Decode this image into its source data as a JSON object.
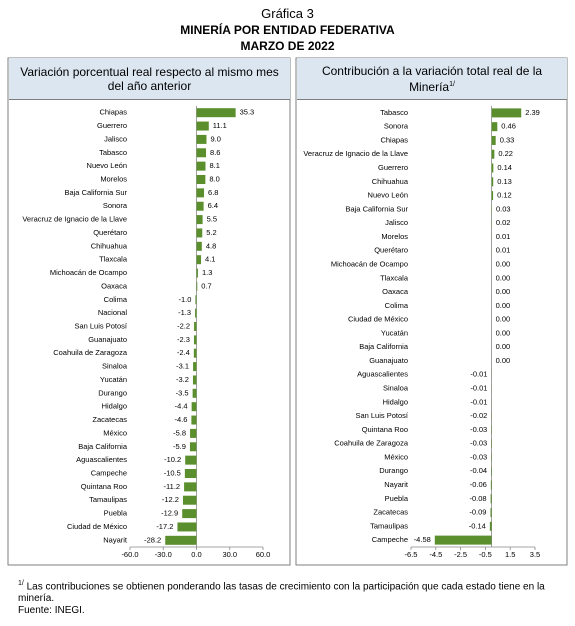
{
  "header": {
    "title": "Gráfica 3",
    "subtitle": "MINERÍA POR ENTIDAD FEDERATIVA",
    "period": "MARZO DE 2022"
  },
  "chart_data": [
    {
      "type": "bar",
      "title": "Variación porcentual real respecto al mismo mes del año anterior",
      "categories": [
        "Chiapas",
        "Guerrero",
        "Jalisco",
        "Tabasco",
        "Nuevo León",
        "Morelos",
        "Baja California Sur",
        "Sonora",
        "Veracruz de Ignacio de la Llave",
        "Querétaro",
        "Chihuahua",
        "Tlaxcala",
        "Michoacán de Ocampo",
        "Oaxaca",
        "Colima",
        "Nacional",
        "San Luis Potosí",
        "Guanajuato",
        "Coahuila de Zaragoza",
        "Sinaloa",
        "Yucatán",
        "Durango",
        "Hidalgo",
        "Zacatecas",
        "México",
        "Baja California",
        "Aguascalientes",
        "Campeche",
        "Quintana Roo",
        "Tamaulipas",
        "Puebla",
        "Ciudad de México",
        "Nayarit"
      ],
      "values": [
        35.3,
        11.1,
        9.0,
        8.6,
        8.1,
        8.0,
        6.8,
        6.4,
        5.5,
        5.2,
        4.8,
        4.1,
        1.3,
        0.7,
        -1.0,
        -1.3,
        -2.2,
        -2.3,
        -2.4,
        -3.1,
        -3.2,
        -3.5,
        -4.4,
        -4.6,
        -5.8,
        -5.9,
        -10.2,
        -10.5,
        -11.2,
        -12.2,
        -12.9,
        -17.2,
        -28.2
      ],
      "value_labels": [
        "35.3",
        "11.1",
        "9.0",
        "8.6",
        "8.1",
        "8.0",
        "6.8",
        "6.4",
        "5.5",
        "5.2",
        "4.8",
        "4.1",
        "1.3",
        "0.7",
        "-1.0",
        "-1.3",
        "-2.2",
        "-2.3",
        "-2.4",
        "-3.1",
        "-3.2",
        "-3.5",
        "-4.4",
        "-4.6",
        "-5.8",
        "-5.9",
        "-10.2",
        "-10.5",
        "-11.2",
        "-12.2",
        "-12.9",
        "-17.2",
        "-28.2"
      ],
      "color": "#5b8f2e",
      "xlim": [
        -60,
        60
      ],
      "xticks": [
        {
          "value": -60,
          "label": "-60.0"
        },
        {
          "value": -30,
          "label": "-30.0"
        },
        {
          "value": 0,
          "label": "0.0"
        },
        {
          "value": 30,
          "label": "30.0"
        },
        {
          "value": 60,
          "label": "60.0"
        }
      ]
    },
    {
      "type": "bar",
      "title": "Contribución a la variación total real de la Minería",
      "title_note": "1/",
      "categories": [
        "Tabasco",
        "Sonora",
        "Chiapas",
        "Veracruz de Ignacio de la Llave",
        "Guerrero",
        "Chihuahua",
        "Nuevo León",
        "Baja California Sur",
        "Jalisco",
        "Morelos",
        "Querétaro",
        "Michoacán de Ocampo",
        "Tlaxcala",
        "Oaxaca",
        "Colima",
        "Ciudad de México",
        "Yucatán",
        "Baja California",
        "Guanajuato",
        "Aguascalientes",
        "Sinaloa",
        "Hidalgo",
        "San Luis Potosí",
        "Quintana Roo",
        "Coahuila de Zaragoza",
        "México",
        "Durango",
        "Nayarit",
        "Puebla",
        "Zacatecas",
        "Tamaulipas",
        "Campeche"
      ],
      "values": [
        2.39,
        0.46,
        0.33,
        0.22,
        0.14,
        0.13,
        0.12,
        0.03,
        0.02,
        0.01,
        0.01,
        0.0,
        0.0,
        0.0,
        0.0,
        0.0,
        0.0,
        0.0,
        0.0,
        -0.01,
        -0.01,
        -0.01,
        -0.02,
        -0.03,
        -0.03,
        -0.03,
        -0.04,
        -0.06,
        -0.08,
        -0.09,
        -0.14,
        -4.58
      ],
      "value_labels": [
        "2.39",
        "0.46",
        "0.33",
        "0.22",
        "0.14",
        "0.13",
        "0.12",
        "0.03",
        "0.02",
        "0.01",
        "0.01",
        "0.00",
        "0.00",
        "0.00",
        "0.00",
        "0.00",
        "0.00",
        "0.00",
        "0.00",
        "-0.01",
        "-0.01",
        "-0.01",
        "-0.02",
        "-0.03",
        "-0.03",
        "-0.03",
        "-0.04",
        "-0.06",
        "-0.08",
        "-0.09",
        "-0.14",
        "-4.58"
      ],
      "color": "#5b8f2e",
      "xlim": [
        -6.5,
        3.5
      ],
      "xticks": [
        -6.5,
        -4.5,
        -2.5,
        -0.5,
        1.5,
        3.5
      ]
    }
  ],
  "footnote": {
    "mark": "1/",
    "text": "Las contribuciones se obtienen ponderando las tasas de crecimiento con la participación que cada estado tiene en la minería."
  },
  "source": "Fuente: INEGI."
}
